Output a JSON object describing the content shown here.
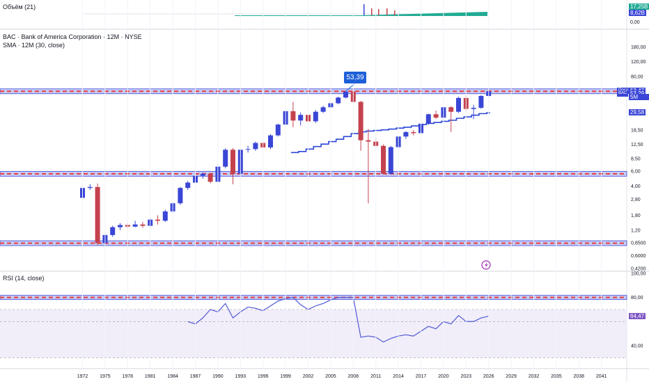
{
  "volume_pane": {
    "legend": "Объём (21)",
    "scale_labels": [
      "0,00"
    ],
    "tags": [
      {
        "text": "17,25B",
        "color": "#22ab94"
      },
      {
        "text": "8,62B",
        "color": "#3a46d6"
      }
    ]
  },
  "main_pane": {
    "legend_title": "BAC · Bank of America Corporation · 12M · NYSE",
    "legend_sma": "SMA · 12M (30, close)",
    "callout": "53,39",
    "scale_labels": [
      {
        "v": 180,
        "t": "180,00"
      },
      {
        "v": 120,
        "t": "120,00"
      },
      {
        "v": 80,
        "t": "80,00"
      },
      {
        "v": 18.5,
        "t": "18,50"
      },
      {
        "v": 12.5,
        "t": "12,50"
      },
      {
        "v": 8.5,
        "t": "8,50"
      },
      {
        "v": 6,
        "t": "6,00"
      },
      {
        "v": 4,
        "t": "4,00"
      },
      {
        "v": 2.8,
        "t": "2,80"
      },
      {
        "v": 1.8,
        "t": "1,80"
      },
      {
        "v": 1.2,
        "t": "1,20"
      },
      {
        "v": 0.85,
        "t": "0,8500"
      },
      {
        "v": 0.6,
        "t": "0,6000"
      },
      {
        "v": 0.42,
        "t": "0,4200"
      }
    ],
    "tags": [
      {
        "label": "Посл.",
        "text": "53,47",
        "v": 53.47,
        "color": "#3a46d6"
      },
      {
        "label": "BAC",
        "text": "53,29",
        "v": 49.5,
        "color": "#3a46d6"
      },
      {
        "label": "",
        "text": "5M 25d",
        "v": 45.5,
        "color": "#3a46d6"
      },
      {
        "label": "",
        "text": "29,58",
        "v": 29.58,
        "color": "#3a46d6"
      }
    ]
  },
  "rsi_pane": {
    "legend": "RSI (14, close)",
    "scale_labels": [
      {
        "v": 100,
        "t": "100,00"
      },
      {
        "v": 80,
        "t": "80,00"
      },
      {
        "v": 40,
        "t": "40,00"
      }
    ],
    "tag": {
      "text": "64,47",
      "v": 64.47,
      "color": "#7e57c2"
    }
  },
  "x_axis": {
    "labels": [
      "1972",
      "1975",
      "1978",
      "1981",
      "1984",
      "1987",
      "1990",
      "1993",
      "1996",
      "1999",
      "2002",
      "2005",
      "2008",
      "2011",
      "2014",
      "2017",
      "2020",
      "2023",
      "2026",
      "2029",
      "2032",
      "2035",
      "2038",
      "2041"
    ]
  },
  "colors": {
    "up": "#3a46d6",
    "down": "#c4424e",
    "sma": "#2b46d9",
    "rsi": "#5b63d6",
    "level": "#e53e3e",
    "zone": "#c8ccf5"
  },
  "chart_data": [
    {
      "type": "candlestick",
      "title": "BAC · Bank of America Corporation · 12M · NYSE",
      "scale": "log",
      "ylim": [
        0.42,
        180
      ],
      "candles": [
        {
          "x": 1972,
          "o": 2.9,
          "h": 3.9,
          "l": 2.8,
          "c": 3.8
        },
        {
          "x": 1973,
          "o": 3.8,
          "h": 4.2,
          "l": 3.6,
          "c": 3.9
        },
        {
          "x": 1974,
          "o": 3.9,
          "h": 4.3,
          "l": 0.8,
          "c": 0.84
        },
        {
          "x": 1975,
          "o": 0.84,
          "h": 1.1,
          "l": 0.8,
          "c": 1.05
        },
        {
          "x": 1976,
          "o": 1.05,
          "h": 1.35,
          "l": 1.0,
          "c": 1.3
        },
        {
          "x": 1977,
          "o": 1.3,
          "h": 1.45,
          "l": 1.2,
          "c": 1.38
        },
        {
          "x": 1978,
          "o": 1.38,
          "h": 1.45,
          "l": 1.25,
          "c": 1.32
        },
        {
          "x": 1979,
          "o": 1.32,
          "h": 1.55,
          "l": 1.3,
          "c": 1.4
        },
        {
          "x": 1980,
          "o": 1.4,
          "h": 1.5,
          "l": 1.28,
          "c": 1.35
        },
        {
          "x": 1981,
          "o": 1.35,
          "h": 1.7,
          "l": 1.3,
          "c": 1.6
        },
        {
          "x": 1982,
          "o": 1.6,
          "h": 1.8,
          "l": 1.4,
          "c": 1.55
        },
        {
          "x": 1983,
          "o": 1.55,
          "h": 2.1,
          "l": 1.5,
          "c": 2.0
        },
        {
          "x": 1984,
          "o": 2.0,
          "h": 2.6,
          "l": 1.9,
          "c": 2.5
        },
        {
          "x": 1985,
          "o": 2.5,
          "h": 3.9,
          "l": 2.4,
          "c": 3.8
        },
        {
          "x": 1986,
          "o": 3.8,
          "h": 4.6,
          "l": 3.6,
          "c": 4.4
        },
        {
          "x": 1987,
          "o": 4.4,
          "h": 5.6,
          "l": 4.2,
          "c": 5.3
        },
        {
          "x": 1988,
          "o": 5.3,
          "h": 5.8,
          "l": 4.9,
          "c": 5.6
        },
        {
          "x": 1989,
          "o": 5.6,
          "h": 5.7,
          "l": 4.3,
          "c": 4.5
        },
        {
          "x": 1990,
          "o": 4.5,
          "h": 7.2,
          "l": 4.4,
          "c": 6.8
        },
        {
          "x": 1991,
          "o": 6.8,
          "h": 11.2,
          "l": 6.5,
          "c": 10.8
        },
        {
          "x": 1992,
          "o": 10.8,
          "h": 11.3,
          "l": 4.2,
          "c": 5.6
        },
        {
          "x": 1993,
          "o": 5.6,
          "h": 11.0,
          "l": 5.4,
          "c": 10.8
        },
        {
          "x": 1994,
          "o": 10.8,
          "h": 12.0,
          "l": 10.0,
          "c": 11.0
        },
        {
          "x": 1995,
          "o": 11.0,
          "h": 13.5,
          "l": 10.5,
          "c": 13.0
        },
        {
          "x": 1996,
          "o": 13.0,
          "h": 13.2,
          "l": 11.2,
          "c": 11.5
        },
        {
          "x": 1997,
          "o": 11.5,
          "h": 16.5,
          "l": 11.0,
          "c": 16.0
        },
        {
          "x": 1998,
          "o": 16.0,
          "h": 22.0,
          "l": 15.5,
          "c": 21.5
        },
        {
          "x": 1999,
          "o": 21.5,
          "h": 32.0,
          "l": 21.0,
          "c": 31.0
        },
        {
          "x": 2000,
          "o": 31.0,
          "h": 40.0,
          "l": 20.0,
          "c": 24.0
        },
        {
          "x": 2001,
          "o": 24.0,
          "h": 30.0,
          "l": 21.0,
          "c": 28.0
        },
        {
          "x": 2002,
          "o": 28.0,
          "h": 29.0,
          "l": 21.0,
          "c": 23.5
        },
        {
          "x": 2003,
          "o": 23.5,
          "h": 32.0,
          "l": 22.5,
          "c": 30.5
        },
        {
          "x": 2004,
          "o": 30.5,
          "h": 36.0,
          "l": 29.5,
          "c": 34.5
        },
        {
          "x": 2005,
          "o": 34.5,
          "h": 40.0,
          "l": 33.5,
          "c": 38.5
        },
        {
          "x": 2006,
          "o": 38.5,
          "h": 46.0,
          "l": 37.5,
          "c": 45.0
        },
        {
          "x": 2007,
          "o": 45.0,
          "h": 53.39,
          "l": 44.0,
          "c": 53.0
        },
        {
          "x": 2008,
          "o": 53.0,
          "h": 55.0,
          "l": 39.0,
          "c": 40.0
        },
        {
          "x": 2009,
          "o": 40.0,
          "h": 41.0,
          "l": 10.5,
          "c": 14.0
        },
        {
          "x": 2010,
          "o": 14.0,
          "h": 19.0,
          "l": 2.5,
          "c": 13.5
        },
        {
          "x": 2011,
          "o": 13.5,
          "h": 15.0,
          "l": 11.5,
          "c": 12.0
        },
        {
          "x": 2012,
          "o": 12.0,
          "h": 12.5,
          "l": 5.5,
          "c": 5.6
        },
        {
          "x": 2013,
          "o": 5.6,
          "h": 12.0,
          "l": 5.5,
          "c": 11.6
        },
        {
          "x": 2014,
          "o": 11.6,
          "h": 15.8,
          "l": 11.0,
          "c": 15.5
        },
        {
          "x": 2015,
          "o": 15.5,
          "h": 18.0,
          "l": 14.5,
          "c": 17.5
        },
        {
          "x": 2016,
          "o": 17.5,
          "h": 18.5,
          "l": 16.0,
          "c": 17.0
        },
        {
          "x": 2017,
          "o": 17.0,
          "h": 23.0,
          "l": 11.0,
          "c": 22.0
        },
        {
          "x": 2018,
          "o": 22.0,
          "h": 29.0,
          "l": 21.5,
          "c": 28.5
        },
        {
          "x": 2019,
          "o": 28.5,
          "h": 31.5,
          "l": 25.0,
          "c": 26.0
        },
        {
          "x": 2020,
          "o": 26.0,
          "h": 35.0,
          "l": 24.5,
          "c": 34.5
        },
        {
          "x": 2021,
          "o": 34.5,
          "h": 35.5,
          "l": 17.5,
          "c": 30.5
        },
        {
          "x": 2022,
          "o": 30.5,
          "h": 46.0,
          "l": 29.5,
          "c": 44.5
        },
        {
          "x": 2023,
          "o": 44.5,
          "h": 48.0,
          "l": 31.0,
          "c": 33.0
        },
        {
          "x": 2024,
          "o": 33.0,
          "h": 37.0,
          "l": 25.0,
          "c": 34.0
        },
        {
          "x": 2025,
          "o": 34.0,
          "h": 48.0,
          "l": 33.0,
          "c": 47.0
        },
        {
          "x": 2026,
          "o": 47.0,
          "h": 55.0,
          "l": 46.0,
          "c": 53.47
        }
      ],
      "sma": {
        "label": "SMA · 12M (30, close)",
        "points": [
          [
            2000,
            10
          ],
          [
            2001,
            10.3
          ],
          [
            2002,
            11
          ],
          [
            2003,
            11.8
          ],
          [
            2004,
            12.6
          ],
          [
            2005,
            13.5
          ],
          [
            2006,
            14.4
          ],
          [
            2007,
            15.5
          ],
          [
            2008,
            16.8
          ],
          [
            2009,
            17.6
          ],
          [
            2010,
            18
          ],
          [
            2011,
            18.3
          ],
          [
            2012,
            18.6
          ],
          [
            2013,
            19
          ],
          [
            2014,
            19.5
          ],
          [
            2015,
            20
          ],
          [
            2016,
            20.7
          ],
          [
            2017,
            21.5
          ],
          [
            2018,
            22.2
          ],
          [
            2019,
            22.8
          ],
          [
            2020,
            23.5
          ],
          [
            2021,
            24.2
          ],
          [
            2022,
            25.5
          ],
          [
            2023,
            26.5
          ],
          [
            2024,
            27.8
          ],
          [
            2025,
            29.0
          ],
          [
            2026,
            29.58
          ]
        ]
      },
      "levels": [
        53.39,
        5.6,
        0.84
      ]
    },
    {
      "type": "bar",
      "title": "Объём (21)",
      "note": "volume histogram with moving average band",
      "ylim": [
        0,
        17.25
      ]
    },
    {
      "type": "line",
      "title": "RSI (14, close)",
      "ylim": [
        20,
        100
      ],
      "levels": [
        80,
        70,
        60,
        30
      ],
      "points": [
        [
          1986,
          60
        ],
        [
          1987,
          58
        ],
        [
          1988,
          63
        ],
        [
          1989,
          70
        ],
        [
          1990,
          68
        ],
        [
          1991,
          75
        ],
        [
          1992,
          63
        ],
        [
          1993,
          68
        ],
        [
          1994,
          72
        ],
        [
          1995,
          71
        ],
        [
          1996,
          69
        ],
        [
          1997,
          73
        ],
        [
          1998,
          77
        ],
        [
          1999,
          79
        ],
        [
          2000,
          80
        ],
        [
          2001,
          74
        ],
        [
          2002,
          70
        ],
        [
          2003,
          73
        ],
        [
          2004,
          75
        ],
        [
          2005,
          78
        ],
        [
          2006,
          80
        ],
        [
          2007,
          80
        ],
        [
          2008,
          80
        ],
        [
          2009,
          47
        ],
        [
          2010,
          48
        ],
        [
          2011,
          47
        ],
        [
          2012,
          43
        ],
        [
          2013,
          46
        ],
        [
          2014,
          48
        ],
        [
          2015,
          49
        ],
        [
          2016,
          48
        ],
        [
          2017,
          52
        ],
        [
          2018,
          56
        ],
        [
          2019,
          54
        ],
        [
          2020,
          60
        ],
        [
          2021,
          58
        ],
        [
          2022,
          65
        ],
        [
          2023,
          60
        ],
        [
          2024,
          60
        ],
        [
          2025,
          63
        ],
        [
          2026,
          64.47
        ]
      ]
    }
  ]
}
